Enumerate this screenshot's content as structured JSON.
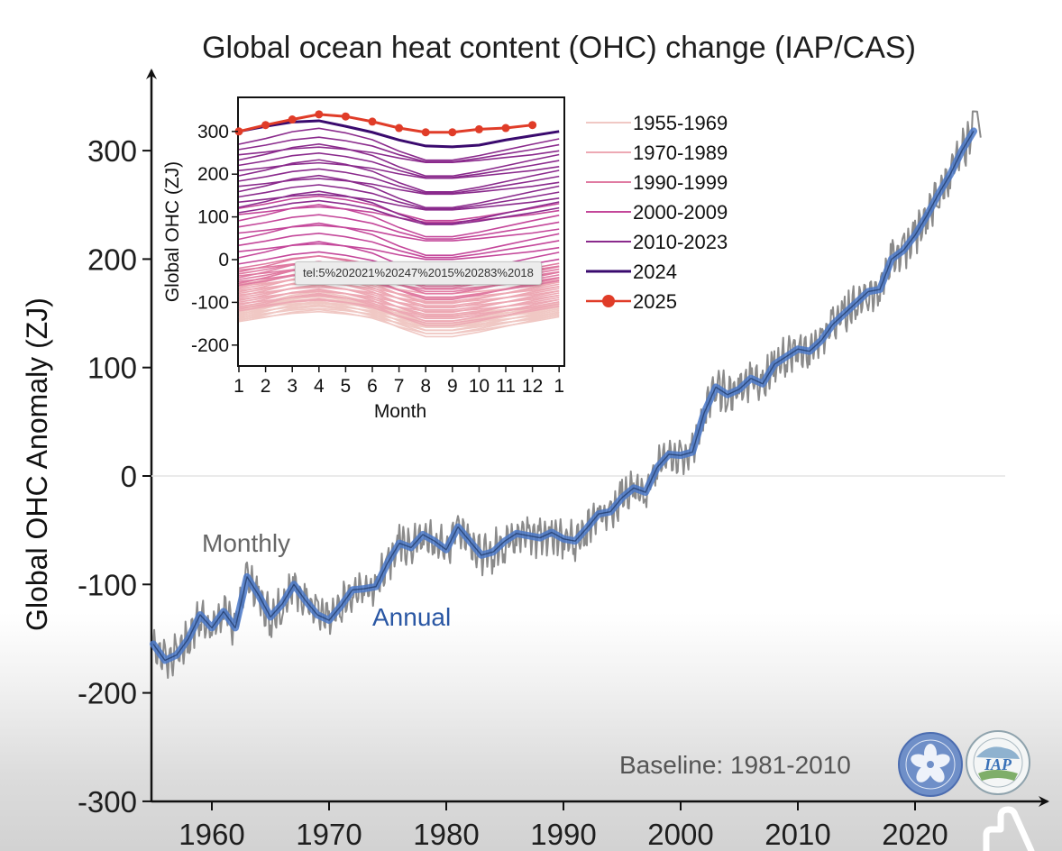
{
  "chart_data": [
    {
      "type": "line",
      "title": "Global ocean heat content (OHC) change (IAP/CAS)",
      "xlabel": "",
      "ylabel": "Global OHC Anomaly (ZJ)",
      "xlim": [
        1955,
        2025.5
      ],
      "ylim": [
        -300,
        300
      ],
      "x_ticks": [
        1960,
        1970,
        1980,
        1990,
        2000,
        2010,
        2020
      ],
      "x_tick_labels": [
        "1960",
        "1970",
        "1980",
        "1990",
        "2000",
        "2010",
        "2020"
      ],
      "y_ticks": [
        -300,
        -200,
        -100,
        0,
        100,
        200,
        300
      ],
      "y_tick_labels": [
        "-300",
        "-200",
        "-100",
        "0",
        "100",
        "200",
        "300"
      ],
      "grid": "zero line only",
      "annotations": {
        "monthly": "Monthly",
        "annual": "Annual",
        "baseline": "Baseline: 1981-2010"
      },
      "series": [
        {
          "name": "Annual",
          "color": "#4a78c8",
          "x": [
            1955,
            1956,
            1957,
            1958,
            1959,
            1960,
            1961,
            1962,
            1963,
            1964,
            1965,
            1966,
            1967,
            1968,
            1969,
            1970,
            1971,
            1972,
            1973,
            1974,
            1975,
            1976,
            1977,
            1978,
            1979,
            1980,
            1981,
            1982,
            1983,
            1984,
            1985,
            1986,
            1987,
            1988,
            1989,
            1990,
            1991,
            1992,
            1993,
            1994,
            1995,
            1996,
            1997,
            1998,
            1999,
            2000,
            2001,
            2002,
            2003,
            2004,
            2005,
            2006,
            2007,
            2008,
            2009,
            2010,
            2011,
            2012,
            2013,
            2014,
            2015,
            2016,
            2017,
            2018,
            2019,
            2020,
            2021,
            2022,
            2023,
            2024,
            2025
          ],
          "values": [
            -155,
            -170,
            -165,
            -150,
            -128,
            -140,
            -125,
            -140,
            -93,
            -110,
            -130,
            -118,
            -100,
            -115,
            -128,
            -133,
            -120,
            -105,
            -104,
            -102,
            -80,
            -62,
            -66,
            -54,
            -60,
            -68,
            -47,
            -60,
            -73,
            -70,
            -60,
            -53,
            -55,
            -57,
            -52,
            -58,
            -60,
            -48,
            -35,
            -33,
            -20,
            -11,
            -15,
            8,
            20,
            19,
            22,
            58,
            82,
            75,
            80,
            90,
            85,
            103,
            110,
            117,
            115,
            125,
            140,
            150,
            160,
            170,
            172,
            200,
            208,
            222,
            240,
            260,
            278,
            300,
            318
          ]
        },
        {
          "name": "Monthly",
          "color": "#8a8a8a",
          "note": "monthly series fluctuates around the annual curve, roughly +/-15 ZJ; peak ~335 in 2025"
        }
      ]
    },
    {
      "type": "line",
      "title": "",
      "xlabel": "Month",
      "ylabel": "Global OHC (ZJ)",
      "ylim": [
        -250,
        360
      ],
      "x_ticks": [
        "1",
        "2",
        "3",
        "4",
        "5",
        "6",
        "7",
        "8",
        "9",
        "10",
        "11",
        "12",
        "1"
      ],
      "y_ticks": [
        -200,
        -100,
        0,
        100,
        200,
        300
      ],
      "y_tick_labels": [
        "-200",
        "-100",
        "0",
        "100",
        "200",
        "300"
      ],
      "seasonal_shape": [
        0,
        10,
        22,
        28,
        20,
        8,
        -12,
        -28,
        -28,
        -20,
        -10,
        0,
        5
      ],
      "legend": {
        "placement": "right of inset",
        "items": [
          {
            "label": "1955-1969",
            "color": "#f0c8c4",
            "years": [
              1955,
              1969
            ],
            "jan_start_range": [
              -145,
              -110
            ]
          },
          {
            "label": "1970-1989",
            "color": "#eda9b4",
            "years": [
              1970,
              1989
            ],
            "jan_start_range": [
              -120,
              -55
            ]
          },
          {
            "label": "1990-1999",
            "color": "#e07ba2",
            "years": [
              1990,
              1999
            ],
            "jan_start_range": [
              -60,
              -20
            ]
          },
          {
            "label": "2000-2009",
            "color": "#c4479a",
            "years": [
              2000,
              2009
            ],
            "jan_start_range": [
              -10,
              120
            ]
          },
          {
            "label": "2010-2023",
            "color": "#8a2a8c",
            "years": [
              2010,
              2023
            ],
            "jan_start_range": [
              110,
              270
            ]
          },
          {
            "label": "2024",
            "color": "#3a0a6e",
            "values": [
              300,
              312,
              322,
              325,
              312,
              298,
              280,
              266,
              264,
              268,
              280,
              290,
              300
            ]
          },
          {
            "label": "2025",
            "color": "#e03c28",
            "marker": "circle",
            "values": [
              300,
              315,
              328,
              340,
              335,
              323,
              308,
              298,
              298,
              305,
              308,
              315
            ]
          }
        ]
      }
    }
  ],
  "tooltip": {
    "text": "tel:5%202021%20247%2015%20283%2018"
  },
  "logos": [
    {
      "name": "Chinese Academy of Sciences",
      "icon": "cas-logo-icon"
    },
    {
      "name": "IAP",
      "icon": "iap-logo-icon",
      "text": "IAP"
    }
  ],
  "cursor": {
    "icon": "hand-pointer-icon"
  }
}
